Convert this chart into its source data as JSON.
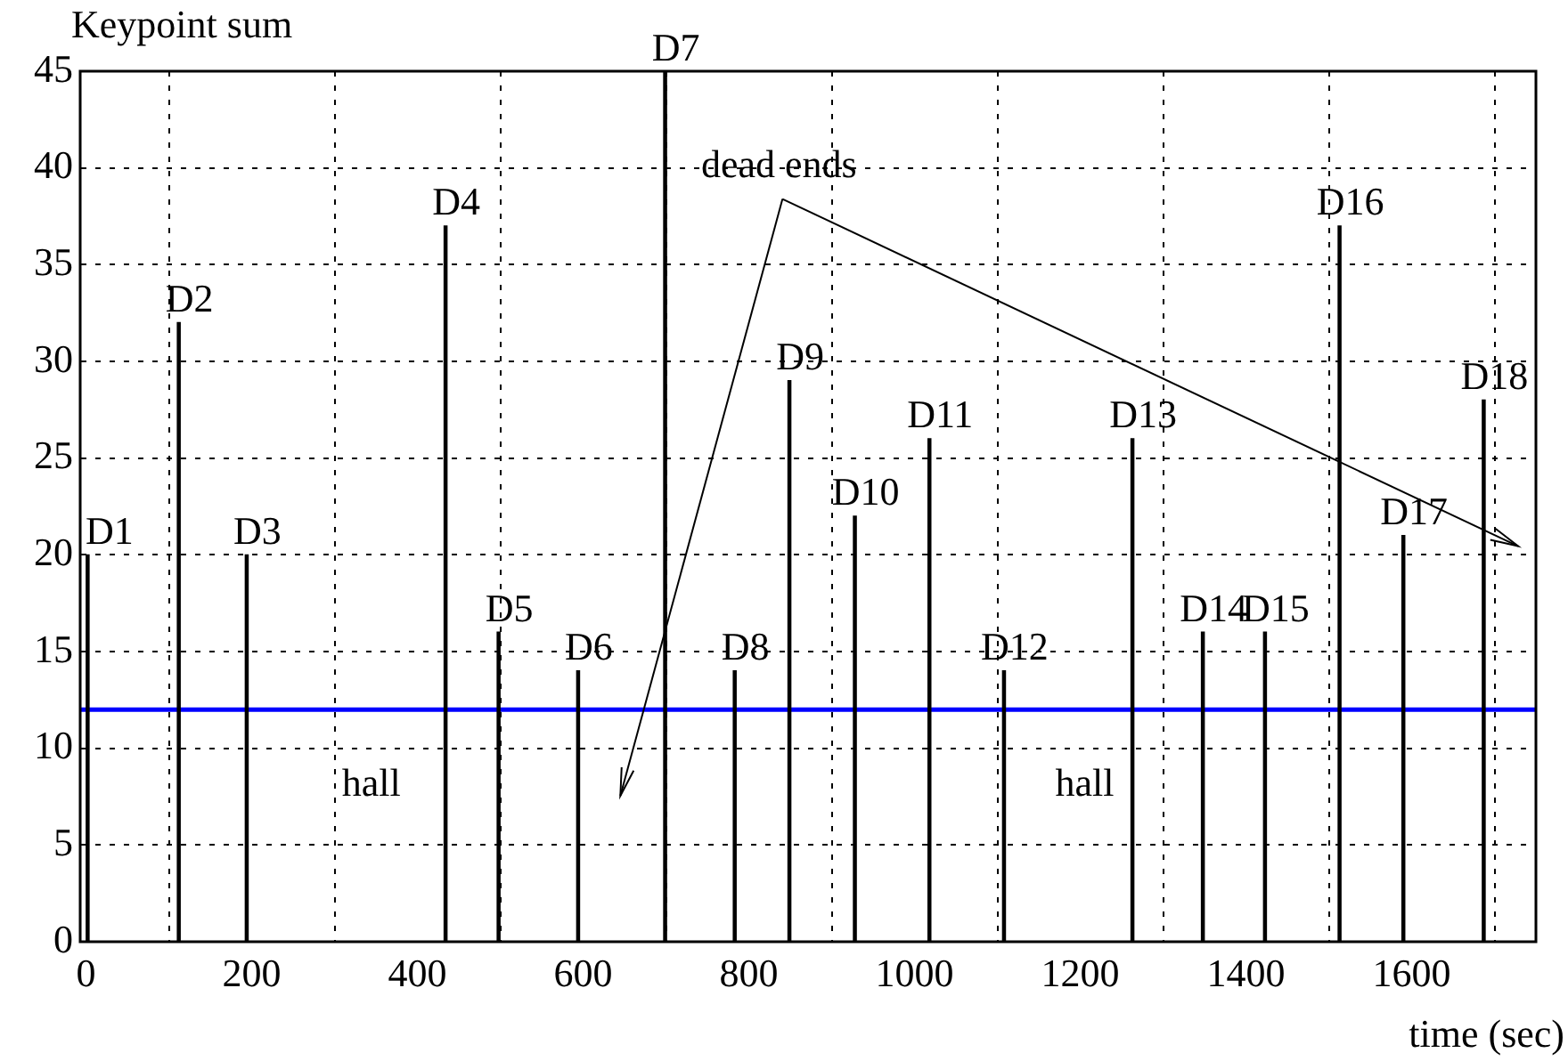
{
  "chart_data": {
    "type": "bar",
    "xlabel": "time (sec)",
    "ylabel": "Keypoint sum",
    "x": [
      2,
      112,
      194,
      434,
      498,
      594,
      699,
      783,
      849,
      928,
      1018,
      1108,
      1263,
      1348,
      1423,
      1513,
      1590,
      1687
    ],
    "values": [
      20,
      32,
      20,
      37,
      16,
      14,
      45,
      14,
      29,
      22,
      26,
      14,
      26,
      16,
      16,
      37,
      21,
      28
    ],
    "color": "#000000",
    "xlim": [
      -7,
      1750
    ],
    "xticks": [
      0,
      200,
      400,
      600,
      800,
      1000,
      1200,
      1400,
      1600
    ],
    "ylim": [
      0,
      45
    ],
    "yticks": [
      0,
      5,
      10,
      15,
      20,
      25,
      30,
      35,
      40,
      45
    ],
    "grid": true,
    "legend": false,
    "ref_lines": [
      {
        "axis": "y",
        "value": 12,
        "color": "#0000ff"
      }
    ],
    "annotations": [
      {
        "text": "D1",
        "x": 2,
        "y": 20
      },
      {
        "text": "D2",
        "x": 112,
        "y": 32
      },
      {
        "text": "D3",
        "x": 194,
        "y": 20
      },
      {
        "text": "D4",
        "x": 434,
        "y": 37
      },
      {
        "text": "D5",
        "x": 498,
        "y": 16
      },
      {
        "text": "D6",
        "x": 594,
        "y": 14
      },
      {
        "text": "D7",
        "x": 699,
        "y": 45
      },
      {
        "text": "D8",
        "x": 783,
        "y": 14
      },
      {
        "text": "D9",
        "x": 849,
        "y": 29
      },
      {
        "text": "D10",
        "x": 928,
        "y": 22
      },
      {
        "text": "D11",
        "x": 1018,
        "y": 26
      },
      {
        "text": "D12",
        "x": 1108,
        "y": 14
      },
      {
        "text": "D13",
        "x": 1263,
        "y": 26
      },
      {
        "text": "D14",
        "x": 1348,
        "y": 16
      },
      {
        "text": "D15",
        "x": 1423,
        "y": 16
      },
      {
        "text": "D16",
        "x": 1513,
        "y": 37
      },
      {
        "text": "D17",
        "x": 1590,
        "y": 21
      },
      {
        "text": "D18",
        "x": 1687,
        "y": 28
      },
      "hall",
      "hall",
      "dead ends"
    ]
  }
}
